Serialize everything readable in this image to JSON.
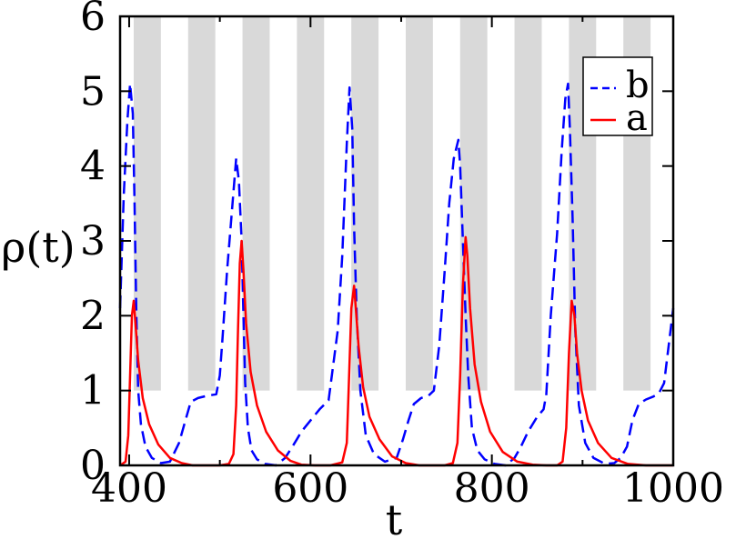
{
  "chart_data": {
    "type": "line",
    "title": "",
    "xlabel": "t",
    "ylabel": "ρ(t)",
    "xlim": [
      390,
      1000
    ],
    "ylim": [
      0,
      6
    ],
    "x_ticks": [
      400,
      600,
      800,
      1000
    ],
    "x_tick_labels": [
      "400",
      "600",
      "800",
      "1000"
    ],
    "y_ticks": [
      0,
      1,
      2,
      3,
      4,
      5,
      6
    ],
    "y_tick_labels": [
      "0",
      "1",
      "2",
      "3",
      "4",
      "5",
      "6"
    ],
    "grid": false,
    "shaded_bands": {
      "color": "#d9d9d9",
      "y_range": [
        1,
        6
      ],
      "x_intervals": [
        [
          405,
          435
        ],
        [
          465,
          495
        ],
        [
          525,
          555
        ],
        [
          585,
          615
        ],
        [
          645,
          675
        ],
        [
          705,
          735
        ],
        [
          765,
          795
        ],
        [
          825,
          855
        ],
        [
          885,
          915
        ],
        [
          945,
          975
        ]
      ]
    },
    "legend": {
      "position": "top-right",
      "entries": [
        "b",
        "a"
      ]
    },
    "series": [
      {
        "name": "b",
        "color": "#0000ff",
        "dash": "dashed",
        "x": [
          390,
          394,
          398,
          401,
          404,
          406,
          408,
          410,
          413,
          418,
          425,
          435,
          445,
          455,
          462,
          468,
          476,
          486,
          496,
          500,
          503,
          508,
          514,
          518,
          521,
          524,
          526,
          528,
          531,
          535,
          541,
          550,
          562,
          572,
          580,
          585,
          590,
          600,
          610,
          620,
          630,
          635,
          640,
          643,
          646,
          648,
          651,
          655,
          661,
          670,
          682,
          695,
          702,
          708,
          714,
          722,
          730,
          736,
          742,
          748,
          753,
          758,
          763,
          765,
          768,
          771,
          774,
          778,
          784,
          792,
          803,
          815,
          825,
          832,
          840,
          850,
          857,
          860,
          865,
          872,
          877,
          881,
          884,
          886,
          889,
          892,
          896,
          903,
          912,
          925,
          935,
          942,
          949,
          955,
          962,
          970,
          978,
          984,
          990,
          995,
          1000
        ],
        "y": [
          2.1,
          3.6,
          4.6,
          5.1,
          4.7,
          3.5,
          2.0,
          1.0,
          0.55,
          0.25,
          0.1,
          0.03,
          0.05,
          0.3,
          0.6,
          0.85,
          0.9,
          0.93,
          0.95,
          1.2,
          1.7,
          2.6,
          3.5,
          4.1,
          3.8,
          3.0,
          2.0,
          1.1,
          0.5,
          0.2,
          0.08,
          0.02,
          0.0,
          0.1,
          0.25,
          0.35,
          0.45,
          0.6,
          0.75,
          0.87,
          1.8,
          2.8,
          4.3,
          5.05,
          4.5,
          3.2,
          2.0,
          1.0,
          0.4,
          0.15,
          0.05,
          0.1,
          0.35,
          0.6,
          0.82,
          0.9,
          0.93,
          1.0,
          1.6,
          2.6,
          3.5,
          4.1,
          4.35,
          4.0,
          3.0,
          2.0,
          1.2,
          0.5,
          0.2,
          0.08,
          0.02,
          0.0,
          0.1,
          0.25,
          0.45,
          0.65,
          0.75,
          0.95,
          2.0,
          3.1,
          4.2,
          4.9,
          5.1,
          4.5,
          3.3,
          1.8,
          0.8,
          0.3,
          0.1,
          0.02,
          0.03,
          0.1,
          0.25,
          0.6,
          0.82,
          0.88,
          0.92,
          0.96,
          1.1,
          1.6,
          2.1
        ]
      },
      {
        "name": "a",
        "color": "#ff0000",
        "dash": "solid",
        "x": [
          390,
          396,
          399,
          401,
          403,
          405,
          407,
          410,
          415,
          422,
          432,
          445,
          458,
          470,
          485,
          500,
          510,
          515,
          518,
          520,
          522,
          524,
          526,
          529,
          534,
          541,
          551,
          564,
          578,
          590,
          605,
          622,
          635,
          640,
          642,
          645,
          648,
          650,
          653,
          658,
          665,
          676,
          690,
          705,
          720,
          735,
          748,
          757,
          762,
          765,
          768,
          771,
          773,
          776,
          781,
          788,
          798,
          812,
          828,
          845,
          860,
          872,
          878,
          882,
          885,
          888,
          891,
          894,
          899,
          906,
          917,
          932,
          950,
          970,
          990,
          1000
        ],
        "y": [
          0.0,
          0.05,
          0.4,
          1.2,
          2.0,
          2.2,
          1.9,
          1.4,
          0.9,
          0.55,
          0.28,
          0.1,
          0.03,
          0.0,
          0.0,
          0.0,
          0.02,
          0.15,
          0.8,
          1.8,
          2.7,
          3.0,
          2.6,
          1.9,
          1.25,
          0.8,
          0.45,
          0.2,
          0.06,
          0.01,
          0.0,
          0.0,
          0.04,
          0.3,
          1.0,
          2.1,
          2.4,
          2.1,
          1.6,
          1.05,
          0.65,
          0.35,
          0.12,
          0.03,
          0.0,
          0.0,
          0.0,
          0.03,
          0.3,
          1.2,
          2.4,
          3.05,
          2.8,
          2.1,
          1.35,
          0.85,
          0.45,
          0.18,
          0.05,
          0.01,
          0.0,
          0.0,
          0.05,
          0.5,
          1.5,
          2.2,
          2.0,
          1.5,
          1.0,
          0.6,
          0.3,
          0.1,
          0.02,
          0.0,
          0.0,
          0.0
        ]
      }
    ]
  }
}
